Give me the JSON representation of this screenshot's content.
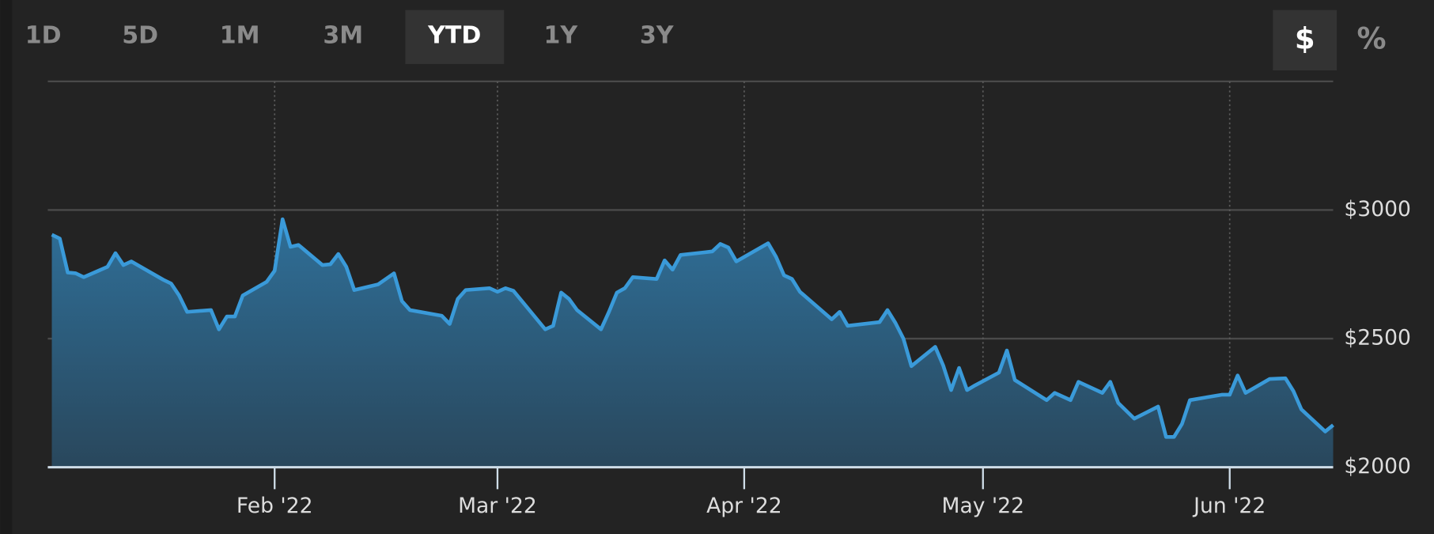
{
  "controls": {
    "ranges": [
      {
        "label": "1D",
        "active": false
      },
      {
        "label": "5D",
        "active": false
      },
      {
        "label": "1M",
        "active": false
      },
      {
        "label": "3M",
        "active": false
      },
      {
        "label": "YTD",
        "active": true
      },
      {
        "label": "1Y",
        "active": false
      },
      {
        "label": "3Y",
        "active": false
      }
    ],
    "units": [
      {
        "label": "$",
        "active": true
      },
      {
        "label": "%",
        "active": false
      }
    ]
  },
  "chart_data": {
    "type": "area",
    "color": "#3a9ad9",
    "grid": true,
    "x": [
      3,
      4,
      5,
      6,
      7,
      10,
      11,
      12,
      13,
      17,
      18,
      19,
      20,
      23,
      24,
      25,
      26,
      27,
      30,
      31,
      32,
      33,
      34,
      37,
      38,
      39,
      40,
      41,
      44,
      46,
      47,
      48,
      52,
      53,
      54,
      55,
      58,
      59,
      60,
      61,
      65,
      66,
      67,
      68,
      69,
      72,
      73,
      74,
      75,
      76,
      79,
      80,
      81,
      82,
      86,
      87,
      88,
      89,
      93,
      94,
      95,
      96,
      97,
      101,
      102,
      103,
      107,
      108,
      109,
      110,
      111,
      114,
      115,
      116,
      117,
      118,
      119,
      122,
      123,
      124,
      128,
      129,
      131,
      132,
      135,
      136,
      137,
      139,
      142,
      143,
      144,
      145,
      146,
      150,
      151,
      152,
      153,
      156,
      158,
      159,
      160,
      163,
      164
    ],
    "values": [
      2904,
      2889,
      2757,
      2754,
      2739,
      2779,
      2832,
      2786,
      2800,
      2729,
      2714,
      2668,
      2604,
      2611,
      2536,
      2586,
      2586,
      2668,
      2721,
      2764,
      2964,
      2857,
      2864,
      2786,
      2789,
      2829,
      2779,
      2689,
      2711,
      2754,
      2646,
      2611,
      2589,
      2557,
      2654,
      2689,
      2696,
      2682,
      2696,
      2686,
      2536,
      2550,
      2679,
      2654,
      2611,
      2536,
      2604,
      2679,
      2696,
      2739,
      2732,
      2804,
      2768,
      2825,
      2839,
      2868,
      2854,
      2800,
      2871,
      2818,
      2746,
      2732,
      2682,
      2575,
      2604,
      2550,
      2564,
      2611,
      2561,
      2500,
      2393,
      2468,
      2396,
      2300,
      2386,
      2300,
      2318,
      2368,
      2454,
      2339,
      2261,
      2289,
      2261,
      2332,
      2289,
      2332,
      2250,
      2189,
      2236,
      2118,
      2118,
      2168,
      2261,
      2282,
      2282,
      2357,
      2289,
      2343,
      2346,
      2296,
      2225,
      2139,
      2164
    ],
    "xlim": [
      2.5,
      164
    ],
    "xticks": [
      {
        "value": 31,
        "label": "Feb '22"
      },
      {
        "value": 59,
        "label": "Mar '22"
      },
      {
        "value": 90,
        "label": "Apr '22"
      },
      {
        "value": 120,
        "label": "May '22"
      },
      {
        "value": 151,
        "label": "Jun '22"
      }
    ],
    "ylim": [
      2000,
      3500
    ],
    "yticks": [
      {
        "value": 2000,
        "label": "$2000"
      },
      {
        "value": 2500,
        "label": "$2500"
      },
      {
        "value": 3000,
        "label": "$3000"
      }
    ]
  }
}
